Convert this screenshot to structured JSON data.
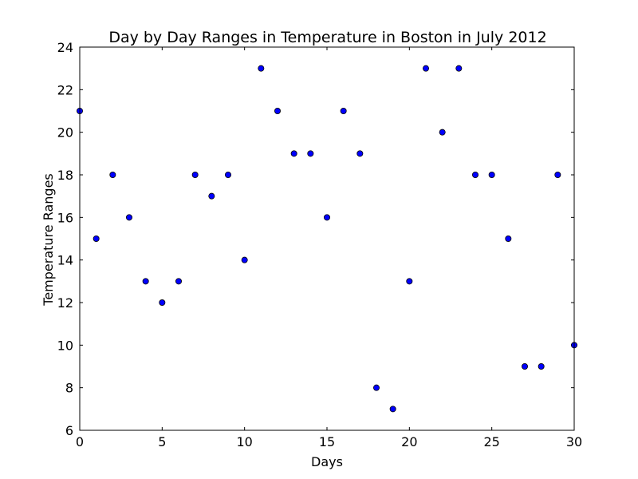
{
  "chart_data": {
    "type": "scatter",
    "title": "Day by Day Ranges in Temperature in Boston in July 2012",
    "xlabel": "Days",
    "ylabel": "Temperature Ranges",
    "xlim": [
      0,
      30
    ],
    "ylim": [
      6,
      24
    ],
    "xticks": [
      0,
      5,
      10,
      15,
      20,
      25,
      30
    ],
    "yticks": [
      6,
      8,
      10,
      12,
      14,
      16,
      18,
      20,
      22,
      24
    ],
    "grid": false,
    "marker_color": "#0000ff",
    "x": [
      0,
      1,
      2,
      3,
      4,
      5,
      6,
      7,
      8,
      9,
      10,
      11,
      12,
      13,
      14,
      15,
      16,
      17,
      18,
      19,
      20,
      21,
      22,
      23,
      24,
      25,
      26,
      27,
      28,
      29,
      30
    ],
    "y": [
      21,
      15,
      18,
      16,
      13,
      12,
      13,
      18,
      17,
      18,
      14,
      23,
      21,
      19,
      19,
      16,
      21,
      19,
      8,
      7,
      13,
      23,
      20,
      23,
      18,
      18,
      15,
      9,
      9,
      18,
      10
    ]
  }
}
